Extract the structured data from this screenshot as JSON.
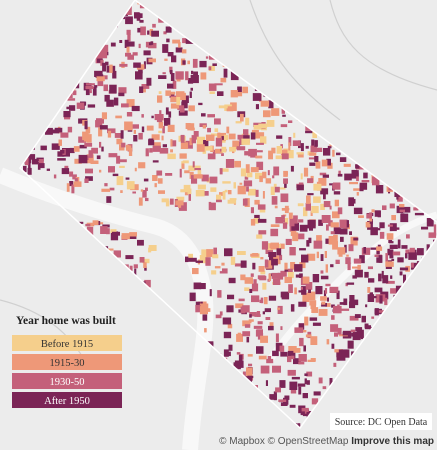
{
  "legend": {
    "title": "Year home was built",
    "items": [
      {
        "label": "Before 1915",
        "color": "#f5cf8c"
      },
      {
        "label": "1915-30",
        "color": "#ee9878"
      },
      {
        "label": "1930-50",
        "color": "#c4607a"
      },
      {
        "label": "After 1950",
        "color": "#7b2456"
      }
    ]
  },
  "source": "Source: DC Open Data",
  "attribution": {
    "mapbox": "© Mapbox",
    "osm": "© OpenStreetMap",
    "improve": "Improve this map"
  }
}
